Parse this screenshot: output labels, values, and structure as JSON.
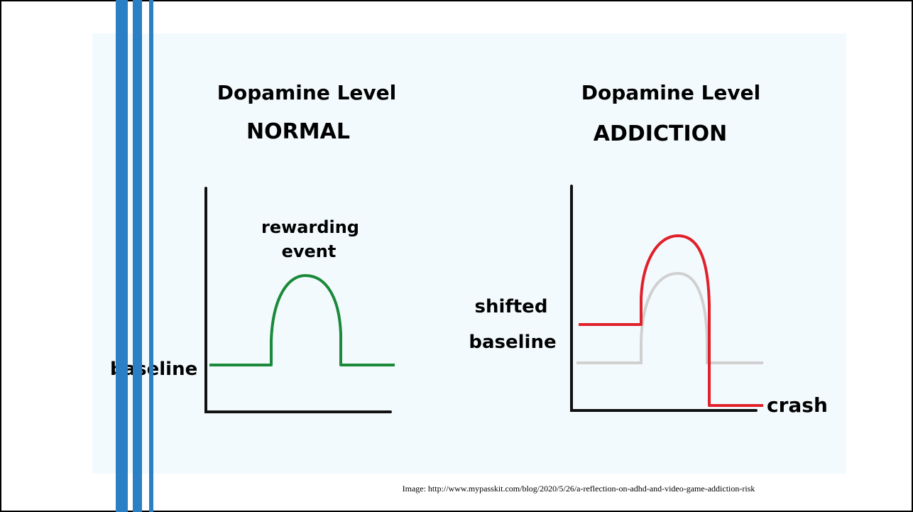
{
  "diagrams": [
    {
      "title": "Dopamine Level",
      "subtitle": "NORMAL",
      "labels": [
        "rewarding",
        "event",
        "baseline"
      ]
    },
    {
      "title": "Dopamine Level",
      "subtitle": "ADDICTION",
      "labels": [
        "shifted",
        "baseline",
        "crash"
      ]
    }
  ],
  "caption": "Image: http://www.mypasskit.com/blog/2020/5/26/a-reflection-on-adhd-and-video-game-addiction-risk"
}
